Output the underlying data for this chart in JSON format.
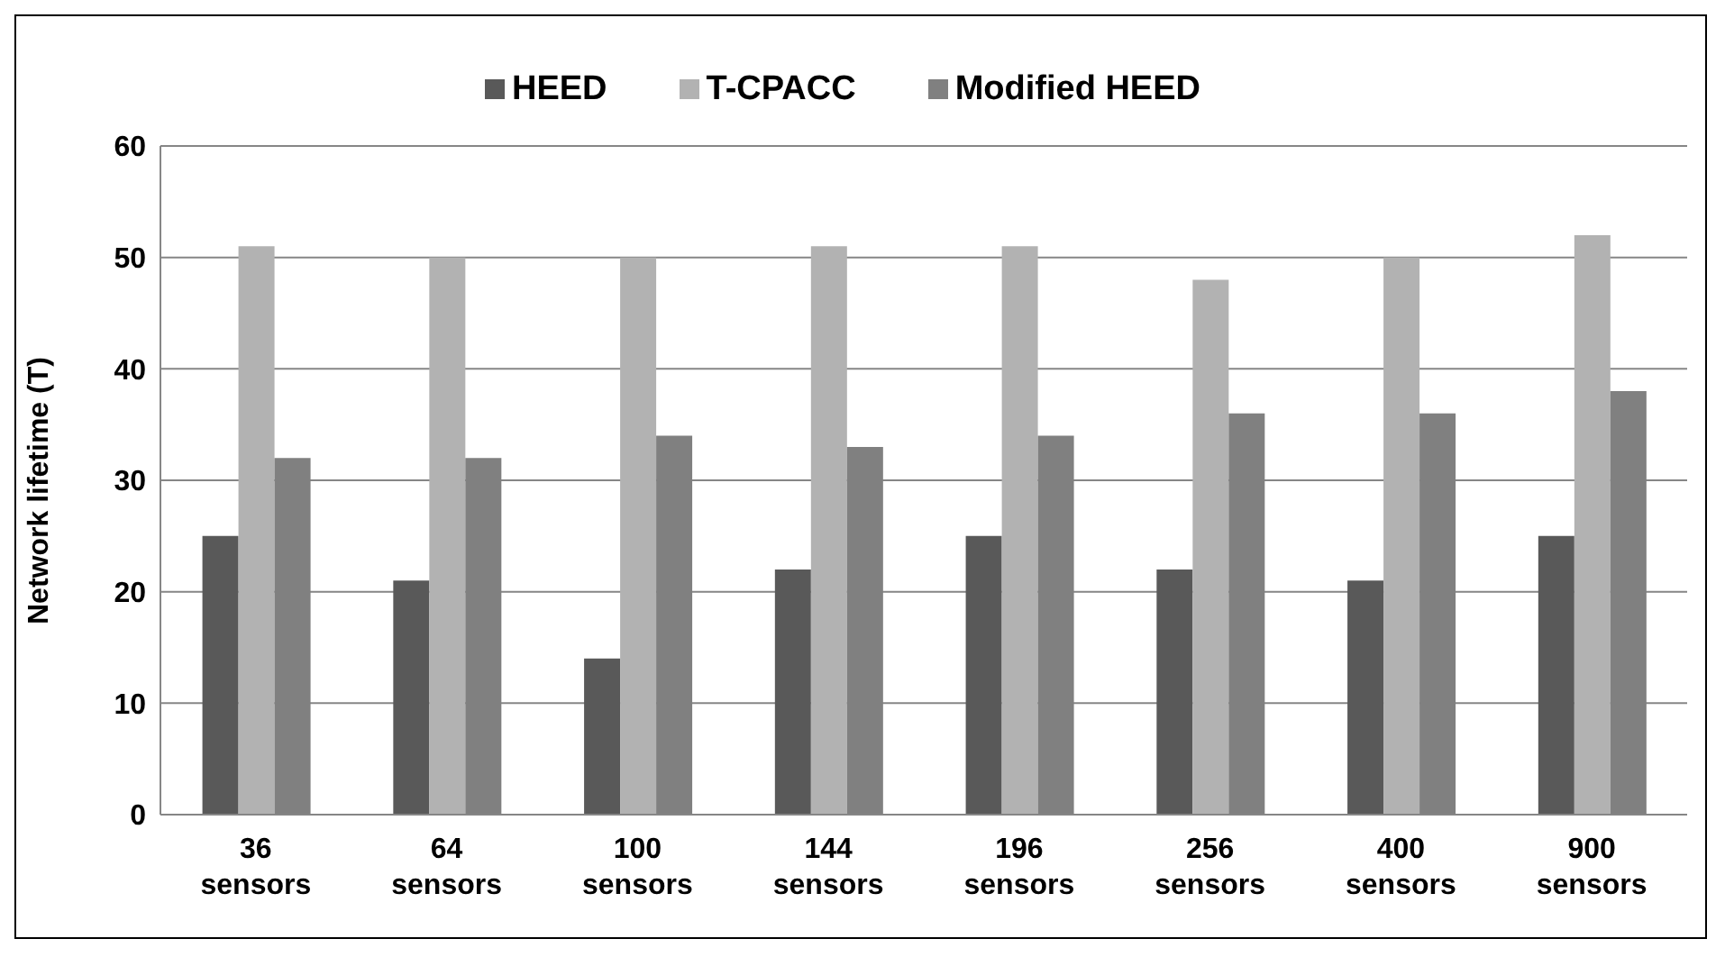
{
  "chart_data": {
    "type": "bar",
    "ylabel": "Network lifetime (T)",
    "categories": [
      "36 sensors",
      "64 sensors",
      "100 sensors",
      "144 sensors",
      "196 sensors",
      "256 sensors",
      "400 sensors",
      "900 sensors"
    ],
    "series": [
      {
        "name": "HEED",
        "color": "#595959",
        "values": [
          25,
          21,
          14,
          22,
          25,
          22,
          21,
          25
        ]
      },
      {
        "name": "T-CPACC",
        "color": "#b2b2b2",
        "values": [
          51,
          50,
          50,
          51,
          51,
          48,
          50,
          52
        ]
      },
      {
        "name": "Modified HEED",
        "color": "#808080",
        "values": [
          32,
          32,
          34,
          33,
          34,
          36,
          36,
          38
        ]
      }
    ],
    "ylim": [
      0,
      60
    ],
    "yticks": [
      0,
      10,
      20,
      30,
      40,
      50,
      60
    ],
    "grid": "y",
    "legend": "top"
  }
}
